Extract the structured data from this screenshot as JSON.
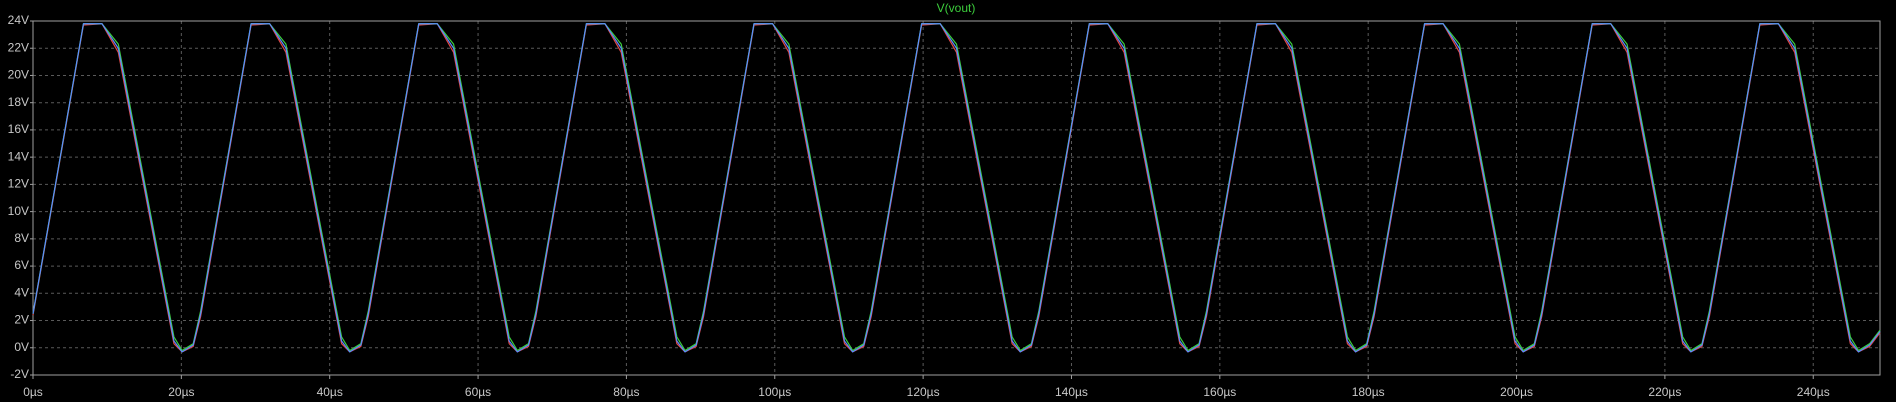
{
  "chart_data": {
    "type": "line",
    "title": "V(vout)",
    "title_color": "#3ccd3c",
    "x": [
      0,
      6.8,
      9.3,
      11.5,
      19,
      20.1,
      21.6,
      22.6,
      29.4,
      31.9,
      34.1,
      41.6,
      42.7,
      44.2,
      45.2,
      52.0,
      54.5,
      56.7,
      64.2,
      65.3,
      66.8,
      67.8,
      74.6,
      77.1,
      79.3,
      86.8,
      87.9,
      89.4,
      90.4,
      97.2,
      99.7,
      101.9,
      109.4,
      110.5,
      112,
      113,
      119.8,
      122.3,
      124.5,
      132,
      133.1,
      134.6,
      135.6,
      142.4,
      144.9,
      147.1,
      154.6,
      155.7,
      157.2,
      158.2,
      165,
      167.5,
      169.7,
      177.2,
      178.3,
      179.8,
      180.8,
      187.6,
      190.1,
      192.3,
      199.8,
      200.9,
      202.4,
      203.4,
      210.2,
      212.7,
      214.9,
      222.4,
      223.5,
      225,
      226,
      232.8,
      235.3,
      237.5,
      245,
      246.1,
      247.6,
      249
    ],
    "series": [
      {
        "color": "#e04848",
        "values": [
          2.4,
          23.7,
          23.8,
          21.7,
          0.3,
          -0.3,
          0.1,
          2.3,
          23.7,
          23.8,
          21.7,
          0.3,
          -0.3,
          0.1,
          2.3,
          23.7,
          23.8,
          21.7,
          0.3,
          -0.3,
          0.1,
          2.3,
          23.7,
          23.8,
          21.7,
          0.3,
          -0.3,
          0.1,
          2.3,
          23.7,
          23.8,
          21.7,
          0.3,
          -0.3,
          0.1,
          2.3,
          23.7,
          23.8,
          21.7,
          0.3,
          -0.3,
          0.1,
          2.3,
          23.7,
          23.8,
          21.7,
          0.3,
          -0.3,
          0.1,
          2.3,
          23.7,
          23.8,
          21.7,
          0.3,
          -0.3,
          0.1,
          2.3,
          23.7,
          23.8,
          21.7,
          0.3,
          -0.3,
          0.1,
          2.3,
          23.7,
          23.8,
          21.7,
          0.3,
          -0.3,
          0.1,
          2.3,
          23.7,
          23.8,
          21.7,
          0.3,
          -0.3,
          0.1,
          1.1
        ]
      },
      {
        "color": "#3ccd3c",
        "values": [
          2.5,
          23.8,
          23.8,
          22.3,
          0.8,
          -0.2,
          0.3,
          2.7,
          23.8,
          23.8,
          22.3,
          0.8,
          -0.2,
          0.3,
          2.7,
          23.8,
          23.8,
          22.3,
          0.8,
          -0.2,
          0.3,
          2.7,
          23.8,
          23.8,
          22.3,
          0.8,
          -0.2,
          0.3,
          2.7,
          23.8,
          23.8,
          22.3,
          0.8,
          -0.2,
          0.3,
          2.7,
          23.8,
          23.8,
          22.3,
          0.8,
          -0.2,
          0.3,
          2.7,
          23.8,
          23.8,
          22.3,
          0.8,
          -0.2,
          0.3,
          2.7,
          23.8,
          23.8,
          22.3,
          0.8,
          -0.2,
          0.3,
          2.7,
          23.8,
          23.8,
          22.3,
          0.8,
          -0.2,
          0.3,
          2.7,
          23.8,
          23.8,
          22.3,
          0.8,
          -0.2,
          0.3,
          2.7,
          23.8,
          23.8,
          22.3,
          0.8,
          -0.2,
          0.3,
          1.3
        ]
      },
      {
        "color": "#5a8cff",
        "values": [
          2.5,
          23.8,
          23.8,
          22,
          0.5,
          -0.3,
          0.2,
          2.5,
          23.8,
          23.8,
          22,
          0.5,
          -0.3,
          0.2,
          2.5,
          23.8,
          23.8,
          22,
          0.5,
          -0.3,
          0.2,
          2.5,
          23.8,
          23.8,
          22,
          0.5,
          -0.3,
          0.2,
          2.5,
          23.8,
          23.8,
          22,
          0.5,
          -0.3,
          0.2,
          2.5,
          23.8,
          23.8,
          22,
          0.5,
          -0.3,
          0.2,
          2.5,
          23.8,
          23.8,
          22,
          0.5,
          -0.3,
          0.2,
          2.5,
          23.8,
          23.8,
          22,
          0.5,
          -0.3,
          0.2,
          2.5,
          23.8,
          23.8,
          22,
          0.5,
          -0.3,
          0.2,
          2.5,
          23.8,
          23.8,
          22,
          0.5,
          -0.3,
          0.2,
          2.5,
          23.8,
          23.8,
          22,
          0.5,
          -0.3,
          0.2,
          1.2
        ]
      }
    ],
    "xlim": [
      0,
      249
    ],
    "ylim": [
      -2,
      24
    ],
    "xticks": [
      {
        "value": 0,
        "label": "0µs"
      },
      {
        "value": 20,
        "label": "20µs"
      },
      {
        "value": 40,
        "label": "40µs"
      },
      {
        "value": 60,
        "label": "60µs"
      },
      {
        "value": 80,
        "label": "80µs"
      },
      {
        "value": 100,
        "label": "100µs"
      },
      {
        "value": 120,
        "label": "120µs"
      },
      {
        "value": 140,
        "label": "140µs"
      },
      {
        "value": 160,
        "label": "160µs"
      },
      {
        "value": 180,
        "label": "180µs"
      },
      {
        "value": 200,
        "label": "200µs"
      },
      {
        "value": 220,
        "label": "220µs"
      },
      {
        "value": 240,
        "label": "240µs"
      }
    ],
    "yticks": [
      {
        "value": -2,
        "label": "-2V"
      },
      {
        "value": 0,
        "label": "0V"
      },
      {
        "value": 2,
        "label": "2V"
      },
      {
        "value": 4,
        "label": "4V"
      },
      {
        "value": 6,
        "label": "6V"
      },
      {
        "value": 8,
        "label": "8V"
      },
      {
        "value": 10,
        "label": "10V"
      },
      {
        "value": 12,
        "label": "12V"
      },
      {
        "value": 14,
        "label": "14V"
      },
      {
        "value": 16,
        "label": "16V"
      },
      {
        "value": 18,
        "label": "18V"
      },
      {
        "value": 20,
        "label": "20V"
      },
      {
        "value": 22,
        "label": "22V"
      },
      {
        "value": 24,
        "label": "24V"
      }
    ],
    "grid": true
  }
}
